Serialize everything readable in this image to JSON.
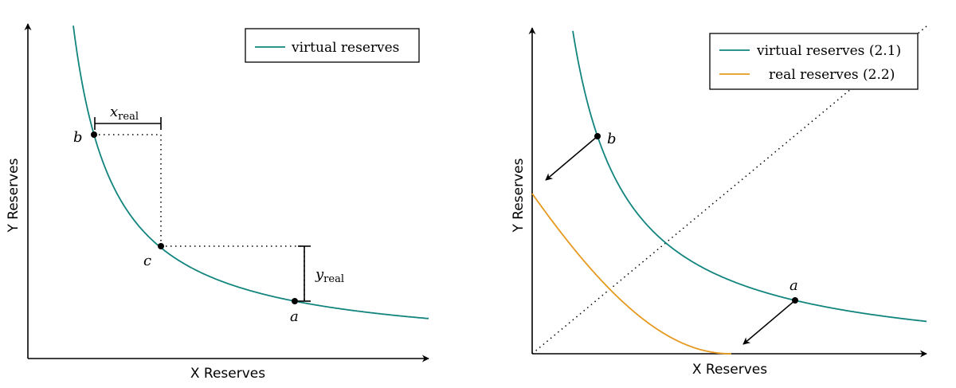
{
  "chart_data": [
    {
      "type": "line",
      "xlabel": "X Reserves",
      "ylabel": "Y Reserves",
      "legend": {
        "placement": "top-right",
        "entries": [
          "virtual reserves"
        ]
      },
      "series": [
        {
          "name": "virtual reserves",
          "color": "#11847e",
          "curve": "hyperbola"
        }
      ],
      "points": [
        {
          "label": "b"
        },
        {
          "label": "c"
        },
        {
          "label": "a"
        }
      ],
      "annotations": [
        {
          "base": "x",
          "subscript": "real"
        },
        {
          "base": "y",
          "subscript": "real"
        }
      ],
      "grid": false
    },
    {
      "type": "line",
      "xlabel": "X Reserves",
      "ylabel": "Y Reserves",
      "legend": {
        "placement": "top-right",
        "entries": [
          "virtual reserves (2.1)",
          "real reserves (2.2)"
        ]
      },
      "series": [
        {
          "name": "virtual reserves (2.1)",
          "color": "#11847e",
          "curve": "hyperbola"
        },
        {
          "name": "real reserves (2.2)",
          "color": "#e59a1f",
          "curve": "shifted hyperbola"
        }
      ],
      "points": [
        {
          "label": "b"
        },
        {
          "label": "a"
        }
      ],
      "grid": false
    }
  ]
}
